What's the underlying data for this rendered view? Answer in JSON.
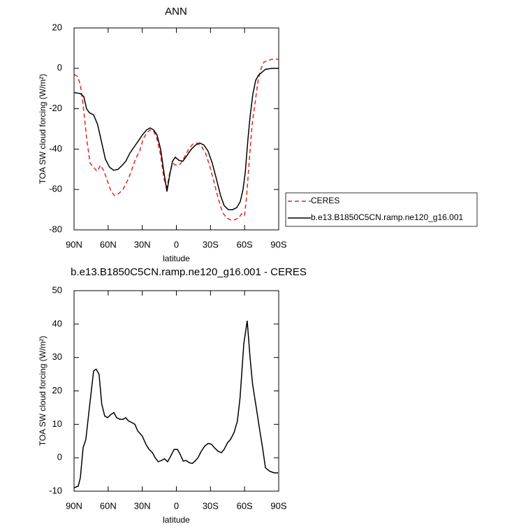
{
  "chart_data": [
    {
      "type": "line",
      "title": "ANN",
      "x_label": "latitude",
      "y_label": "TOA SW cloud forcing (W/m²)",
      "xlim": [
        90,
        -90
      ],
      "xticks": [
        {
          "value": 90,
          "label": "90N"
        },
        {
          "value": 60,
          "label": "60N"
        },
        {
          "value": 30,
          "label": "30N"
        },
        0,
        {
          "value": -30,
          "label": "30S"
        },
        {
          "value": -60,
          "label": "60S"
        },
        {
          "value": -90,
          "label": "90S"
        }
      ],
      "ylim": [
        -80,
        20
      ],
      "yticks": [
        -80,
        -60,
        -40,
        -20,
        0,
        20
      ],
      "legend": "right",
      "series": [
        {
          "name": "CERES",
          "color": "#e8231e",
          "dashed": true,
          "x": [
            90,
            86.9,
            84.5,
            82,
            78.9,
            75.9,
            72.8,
            69.7,
            66.7,
            63.6,
            60.5,
            57.4,
            54.4,
            50.7,
            47,
            43.3,
            39.6,
            36,
            32.3,
            29.2,
            26.2,
            23.1,
            20,
            17,
            13.9,
            10.8,
            8.3,
            5.9,
            3.4,
            0.3,
            -3.4,
            -7.1,
            -10.8,
            -14.5,
            -18.2,
            -21.9,
            -25.6,
            -29.2,
            -32.9,
            -36.6,
            -40.3,
            -43.9,
            -47.6,
            -51.3,
            -55,
            -57.4,
            -59.9,
            -61.7,
            -64.2,
            -66.6,
            -69.7,
            -72.1,
            -74.6,
            -77,
            -80.8,
            -84.4,
            -90
          ],
          "values": [
            -3,
            -4,
            -8,
            -18,
            -35,
            -47,
            -49,
            -51,
            -48,
            -51,
            -56,
            -61,
            -63,
            -62,
            -60,
            -56,
            -51,
            -45,
            -41,
            -35,
            -32,
            -30.5,
            -31,
            -35,
            -43,
            -55,
            -59,
            -52,
            -47,
            -48,
            -47.5,
            -44,
            -40,
            -37.5,
            -37,
            -38.5,
            -42,
            -48,
            -56,
            -64,
            -71,
            -74,
            -75,
            -75,
            -74,
            -72,
            -73,
            -64,
            -45,
            -28,
            -15,
            -5,
            0,
            3,
            4,
            4.5,
            4.5
          ]
        },
        {
          "name": "b.e13.B1850C5CN.ramp.ne120_g16.001",
          "color": "#000000",
          "dashed": false,
          "x": [
            90,
            84.5,
            81.4,
            79,
            76.5,
            72.8,
            69.2,
            65.6,
            62.4,
            58.7,
            55.1,
            51.3,
            47.6,
            44.5,
            40.9,
            37.2,
            33.5,
            29.9,
            26.2,
            23.1,
            20,
            17,
            13.9,
            10.8,
            8.3,
            5.9,
            3.4,
            1,
            -2.1,
            -5.8,
            -9.5,
            -13.2,
            -16.9,
            -20.5,
            -24.2,
            -27.9,
            -31.6,
            -35.3,
            -38.9,
            -42,
            -45.7,
            -49.4,
            -53.1,
            -56.2,
            -58.6,
            -60.5,
            -63,
            -64.8,
            -67.2,
            -69.7,
            -72.1,
            -75.2,
            -78.3,
            -84.4,
            -90
          ],
          "values": [
            -12,
            -12.5,
            -14,
            -20,
            -22,
            -23,
            -28,
            -37,
            -45,
            -49,
            -50.5,
            -50,
            -48,
            -46,
            -42,
            -39,
            -36,
            -33,
            -30.5,
            -29.5,
            -30.5,
            -33,
            -40,
            -52,
            -61,
            -53,
            -46,
            -44,
            -45.5,
            -46,
            -43,
            -40,
            -38,
            -37,
            -38,
            -41,
            -47,
            -55,
            -63,
            -68,
            -70,
            -70,
            -69,
            -66,
            -60,
            -52,
            -35,
            -24,
            -13,
            -6,
            -3.5,
            -2,
            -0.5,
            0,
            0
          ]
        }
      ]
    },
    {
      "type": "line",
      "title": "b.e13.B1850C5CN.ramp.ne120_g16.001 - CERES",
      "x_label": "latitude",
      "y_label": "TOA SW cloud forcing (W/m²)",
      "xlim": [
        90,
        -90
      ],
      "xticks": [
        {
          "value": 90,
          "label": "90N"
        },
        {
          "value": 60,
          "label": "60N"
        },
        {
          "value": 30,
          "label": "30N"
        },
        0,
        {
          "value": -30,
          "label": "30S"
        },
        {
          "value": -60,
          "label": "60S"
        },
        {
          "value": -90,
          "label": "90S"
        }
      ],
      "ylim": [
        -10,
        50
      ],
      "yticks": [
        -10,
        0,
        10,
        20,
        30,
        40,
        50
      ],
      "series": [
        {
          "color": "#000000",
          "dashed": false,
          "x": [
            90,
            86.3,
            84.5,
            82,
            79.6,
            76.5,
            72.8,
            70.5,
            68,
            65.6,
            63,
            60.5,
            57.4,
            55,
            52.5,
            49.5,
            47,
            44.6,
            42,
            39,
            36.5,
            34,
            30,
            26.7,
            24,
            21,
            18.6,
            16,
            13,
            10.5,
            7.7,
            5,
            2,
            -1,
            -3.4,
            -6,
            -8.4,
            -11.5,
            -14,
            -16.4,
            -19,
            -22,
            -25,
            -28,
            -31,
            -33.4,
            -36.5,
            -39.5,
            -42,
            -45,
            -47.6,
            -50.7,
            -53.7,
            -56,
            -59.3,
            -62.3,
            -64.8,
            -67,
            -70.3,
            -73.4,
            -75.8,
            -78.3,
            -82,
            -85.7,
            -89.4
          ],
          "values": [
            -9,
            -8.5,
            -6,
            3,
            5.5,
            15,
            26,
            26.5,
            25,
            16,
            12.5,
            12,
            13,
            13.5,
            12,
            11.5,
            11.5,
            12,
            11,
            10.5,
            10,
            8,
            6.5,
            4,
            2.5,
            1.5,
            0,
            -1.2,
            -0.8,
            -0.3,
            -1.2,
            0.5,
            2.5,
            2.5,
            1,
            -1,
            -0.8,
            -1.5,
            -1.7,
            -1,
            0,
            2,
            3.5,
            4.3,
            4,
            3,
            2,
            1.5,
            2.5,
            4.5,
            5.5,
            7.5,
            11,
            18,
            34,
            41,
            30,
            22,
            15,
            8,
            3,
            -3,
            -4,
            -4.5,
            -4.5
          ]
        }
      ]
    }
  ]
}
